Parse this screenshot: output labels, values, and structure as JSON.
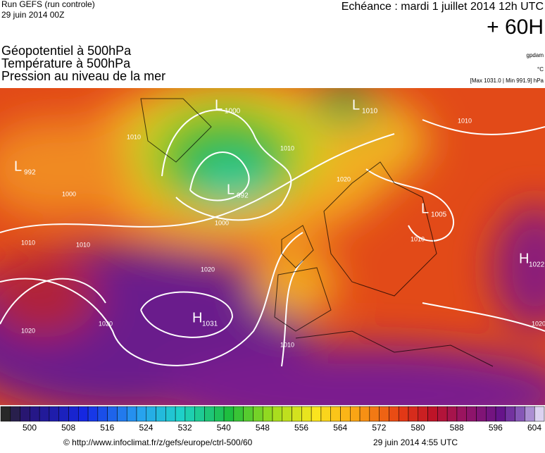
{
  "header": {
    "run": "Run GEFS (run controle)",
    "run_date": "29 juin 2014 00Z",
    "forecast": "Echéance : mardi 1 juillet 2014 12h UTC",
    "lead": "+ 60H"
  },
  "titles": [
    "Géopotentiel à 500hPa",
    "Température à 500hPa",
    "Pression au niveau de la mer"
  ],
  "units": [
    "gpdam",
    "°C",
    "[Max 1031.0 | Min 991.9] hPa"
  ],
  "pressure_centers": [
    {
      "letter": "L",
      "value": "1000"
    },
    {
      "letter": "L",
      "value": "1010"
    },
    {
      "letter": "L",
      "value": "992"
    },
    {
      "letter": "L",
      "value": "992"
    },
    {
      "letter": "L",
      "value": "1005"
    },
    {
      "letter": "H",
      "value": "1031"
    },
    {
      "letter": "H",
      "value": "1022"
    }
  ],
  "isobar_labels": [
    "1010",
    "1000",
    "1010",
    "1020",
    "1000",
    "1010",
    "1020",
    "1020",
    "1020",
    "1010",
    "1010",
    "1020",
    "1010",
    "1010"
  ],
  "colorbar": {
    "ticks": [
      500,
      508,
      516,
      524,
      532,
      540,
      548,
      556,
      564,
      572,
      580,
      588,
      596,
      604
    ]
  },
  "footer": {
    "source": "© http://www.infoclimat.fr/z/gefs/europe/ctrl-500/60",
    "generated": "29 juin 2014  4:55 UTC"
  }
}
